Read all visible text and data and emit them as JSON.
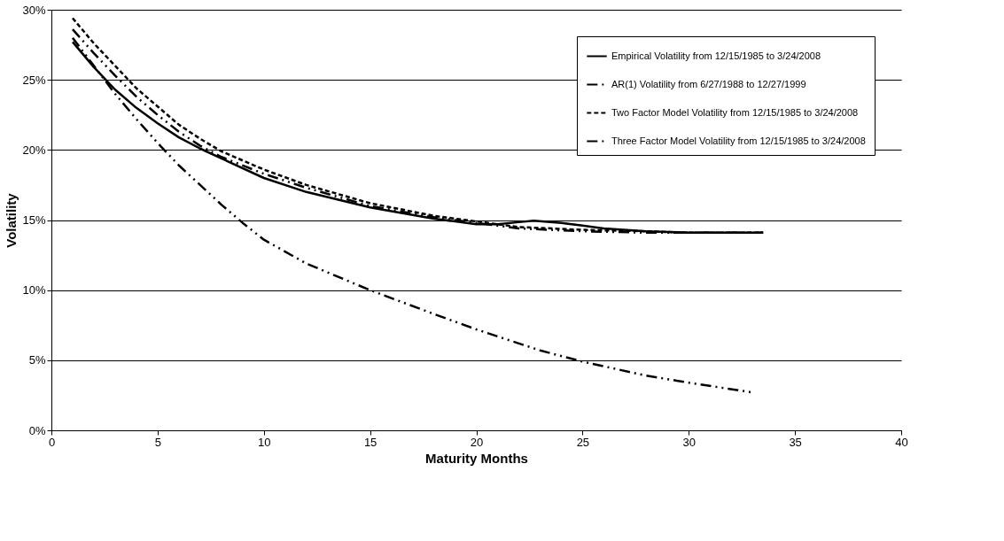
{
  "chart_data": {
    "type": "line",
    "xlabel": "Maturity Months",
    "ylabel": "Volatility",
    "xlim": [
      0,
      40
    ],
    "xticks": [
      0,
      5,
      10,
      15,
      20,
      25,
      30,
      35,
      40
    ],
    "ylim": [
      0,
      30
    ],
    "yticks": [
      {
        "value": 0,
        "label": "0%"
      },
      {
        "value": 5,
        "label": "5%"
      },
      {
        "value": 10,
        "label": "10%"
      },
      {
        "value": 15,
        "label": "15%"
      },
      {
        "value": 20,
        "label": "20%"
      },
      {
        "value": 25,
        "label": "25%"
      },
      {
        "value": 30,
        "label": "30%"
      }
    ],
    "grid": "y",
    "legend": "top right",
    "marker": "none",
    "series": [
      {
        "name": "Empirical Volatility from 12/15/1985 to 3/24/2008",
        "color": "#000000",
        "line_style": "solid",
        "x": [
          1,
          2,
          3,
          4,
          5,
          6,
          7,
          8,
          10,
          12,
          15,
          18,
          20,
          21,
          22,
          22.7,
          24,
          25,
          26,
          28,
          30,
          33.5
        ],
        "values": [
          27.7,
          25.9,
          24.3,
          23.0,
          21.9,
          20.9,
          20.1,
          19.4,
          18.0,
          17.0,
          15.9,
          15.1,
          14.7,
          14.7,
          14.85,
          14.95,
          14.8,
          14.6,
          14.4,
          14.2,
          14.1,
          14.1
        ]
      },
      {
        "name": "AR(1) Volatility from 6/27/1988 to 12/27/1999",
        "color": "#000000",
        "line_style": "dotted",
        "x": [
          1,
          2,
          3,
          4,
          5,
          6,
          7,
          8,
          9,
          10,
          12,
          15,
          18,
          20,
          23,
          25,
          28,
          30,
          33
        ],
        "values": [
          28.0,
          26.0,
          24.0,
          22.2,
          20.5,
          18.9,
          17.5,
          16.1,
          14.8,
          13.6,
          11.9,
          10.0,
          8.3,
          7.2,
          5.7,
          4.9,
          3.9,
          3.4,
          2.7
        ]
      },
      {
        "name": "Two Factor Model Volatility from 12/15/1985 to 3/24/2008",
        "color": "#000000",
        "line_style": "dashed",
        "x": [
          1,
          2,
          3,
          4,
          5,
          6,
          7,
          8,
          10,
          12,
          15,
          18,
          20,
          22,
          25,
          28,
          30,
          33.5
        ],
        "values": [
          29.4,
          27.6,
          26.0,
          24.4,
          23.1,
          21.8,
          20.8,
          19.9,
          18.6,
          17.5,
          16.2,
          15.3,
          14.9,
          14.5,
          14.3,
          14.2,
          14.1,
          14.1
        ]
      },
      {
        "name": "Three Factor Model Volatility from 12/15/1985 to 3/24/2008",
        "color": "#000000",
        "line_style": "dotted",
        "x": [
          1,
          2,
          3,
          4,
          5,
          6,
          7,
          8,
          10,
          12,
          15,
          18,
          20,
          22,
          25,
          28,
          30,
          33.5
        ],
        "values": [
          28.6,
          26.9,
          25.3,
          23.8,
          22.5,
          21.3,
          20.3,
          19.5,
          18.3,
          17.3,
          16.0,
          15.2,
          14.8,
          14.4,
          14.2,
          14.1,
          14.1,
          14.1
        ]
      }
    ]
  }
}
